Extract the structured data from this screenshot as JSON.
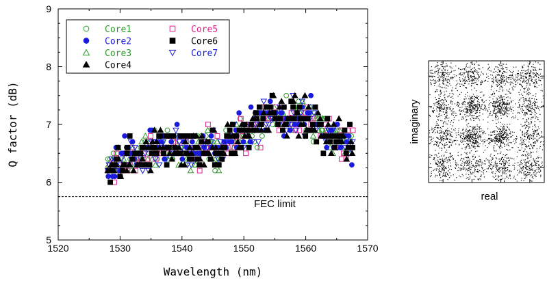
{
  "chart_data": [
    {
      "type": "scatter",
      "title": "",
      "xlabel": "Wavelength (nm)",
      "ylabel": "Q factor (dB)",
      "xlim": [
        1520,
        1570
      ],
      "ylim": [
        5,
        9
      ],
      "xticks": [
        1520,
        1530,
        1540,
        1550,
        1560,
        1570
      ],
      "yticks": [
        5,
        6,
        7,
        8,
        9
      ],
      "grid": false,
      "legend_position": "top-left",
      "annotations": [
        {
          "text": "FEC limit",
          "x": 1555,
          "y": 5.57
        }
      ],
      "reference_lines": [
        {
          "label": "FEC limit",
          "y": 5.75,
          "style": "dashed"
        }
      ],
      "x_range": [
        1528,
        1567.5
      ],
      "trend_x": [
        1528,
        1531,
        1534,
        1537,
        1540,
        1543,
        1546,
        1549,
        1552,
        1555,
        1558,
        1561,
        1564,
        1567.5
      ],
      "trend_y": [
        6.2,
        6.4,
        6.5,
        6.65,
        6.6,
        6.55,
        6.6,
        6.75,
        7.0,
        7.15,
        7.15,
        7.05,
        6.85,
        6.6
      ],
      "series": [
        {
          "name": "Core1",
          "marker": "circle-open",
          "color": "#2a9a2a"
        },
        {
          "name": "Core2",
          "marker": "circle-filled",
          "color": "#1a1adc"
        },
        {
          "name": "Core3",
          "marker": "triangle-open",
          "color": "#2a9a2a"
        },
        {
          "name": "Core4",
          "marker": "triangle-filled",
          "color": "#000000"
        },
        {
          "name": "Core5",
          "marker": "square-open",
          "color": "#e0208a"
        },
        {
          "name": "Core6",
          "marker": "square-filled",
          "color": "#000000"
        },
        {
          "name": "Core7",
          "marker": "triangle-down-open",
          "color": "#1a1adc"
        }
      ]
    },
    {
      "type": "scatter",
      "xlabel": "real",
      "ylabel": "imaginary",
      "constellation": "16QAM",
      "grid_levels": [
        -3,
        -1,
        1,
        3
      ],
      "color": "#000000"
    }
  ]
}
